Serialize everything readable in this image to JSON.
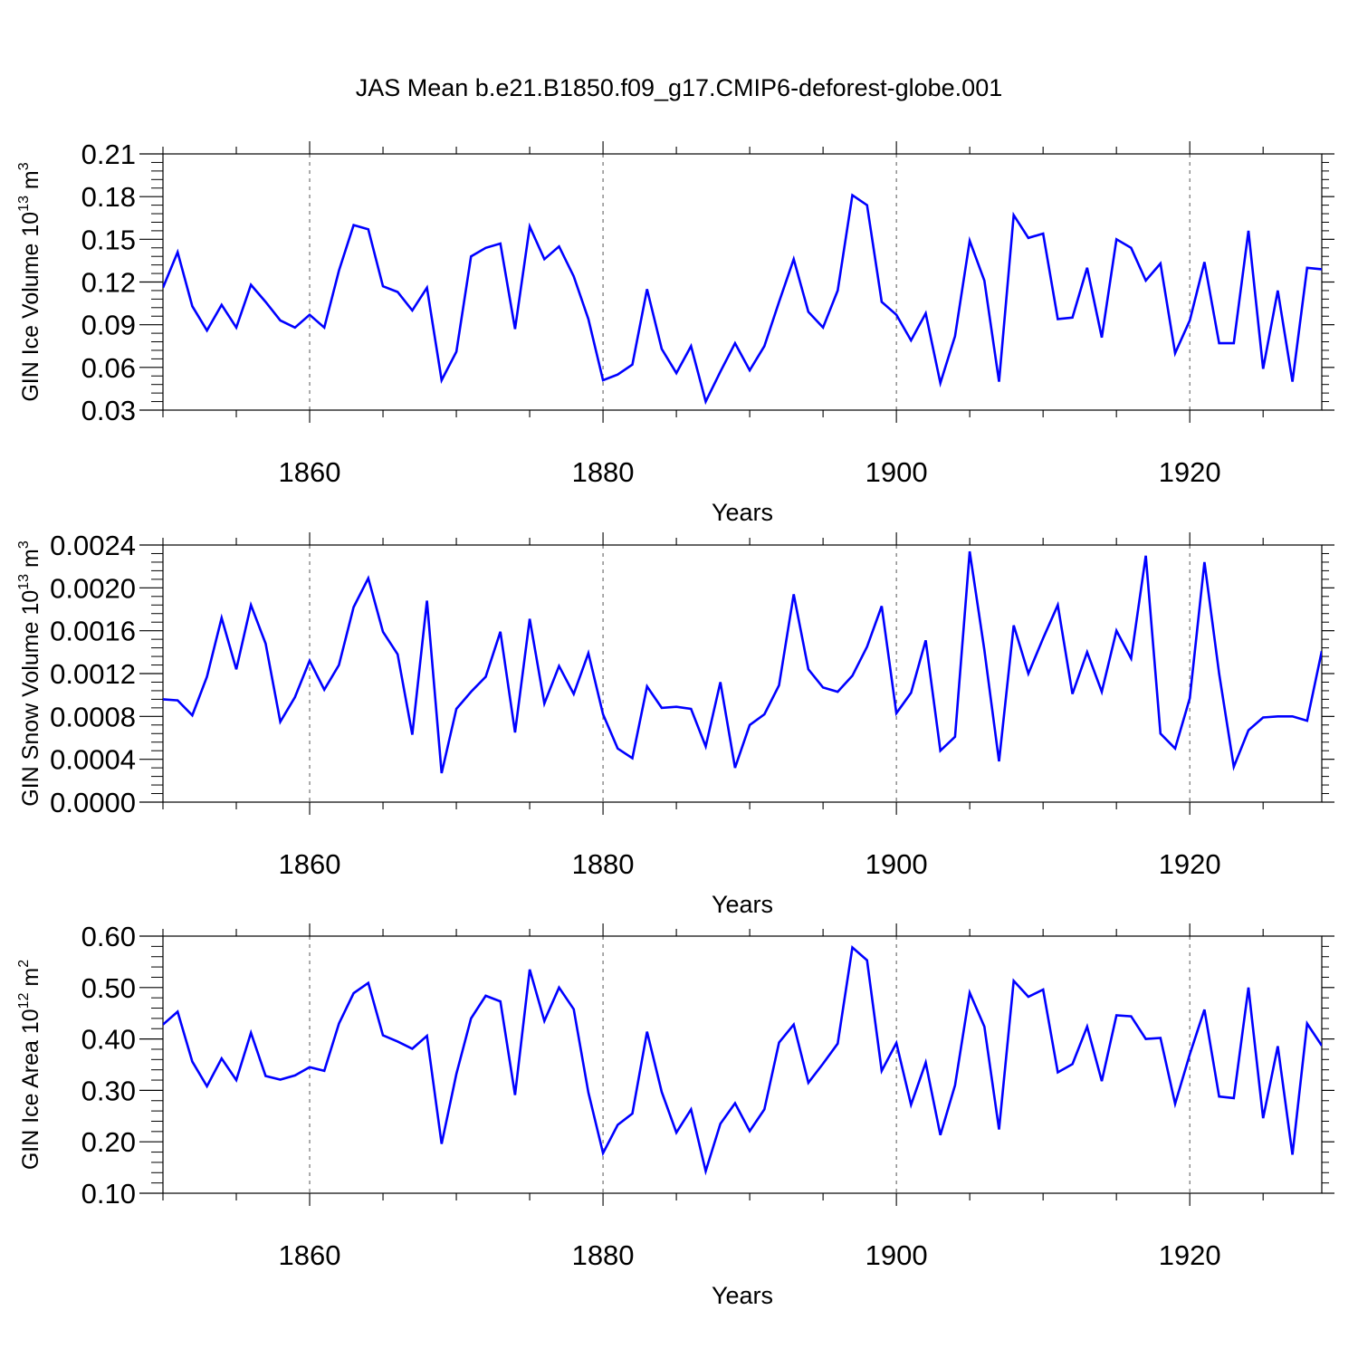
{
  "title": "JAS Mean b.e21.B1850.f09_g17.CMIP6-deforest-globe.001",
  "colors": {
    "line": "#0000ff",
    "axis": "#000000",
    "grid": "#555555",
    "background": "#ffffff"
  },
  "chart_data": [
    {
      "type": "line",
      "ylabel": "GIN Ice Volume 10",
      "ylabel_exp": "13",
      "ylabel_unit": " m",
      "ylabel_unit_exp": "3",
      "xlabel": "Years",
      "xlim": [
        1850,
        1929
      ],
      "ylim": [
        0.03,
        0.21
      ],
      "yticks": [
        "0.03",
        "0.06",
        "0.09",
        "0.12",
        "0.15",
        "0.18",
        "0.21"
      ],
      "xticks": [
        "1860",
        "1880",
        "1900",
        "1920"
      ],
      "grid": "vertical dashed at major x ticks",
      "series": [
        {
          "x_start": 1850,
          "values": [
            0.116,
            0.141,
            0.103,
            0.086,
            0.104,
            0.088,
            0.118,
            0.106,
            0.093,
            0.088,
            0.097,
            0.088,
            0.128,
            0.16,
            0.157,
            0.117,
            0.113,
            0.1,
            0.116,
            0.051,
            0.071,
            0.138,
            0.144,
            0.147,
            0.087,
            0.159,
            0.136,
            0.145,
            0.124,
            0.094,
            0.051,
            0.055,
            0.062,
            0.115,
            0.073,
            0.056,
            0.075,
            0.036,
            0.057,
            0.077,
            0.058,
            0.075,
            0.106,
            0.136,
            0.099,
            0.088,
            0.114,
            0.181,
            0.174,
            0.106,
            0.097,
            0.079,
            0.098,
            0.049,
            0.082,
            0.149,
            0.121,
            0.05,
            0.167,
            0.151,
            0.154,
            0.094,
            0.095,
            0.13,
            0.081,
            0.15,
            0.144,
            0.121,
            0.133,
            0.07,
            0.093,
            0.134,
            0.077,
            0.077,
            0.156,
            0.059,
            0.114,
            0.05,
            0.13,
            0.129
          ]
        }
      ]
    },
    {
      "type": "line",
      "ylabel": "GIN Snow Volume 10",
      "ylabel_exp": "13",
      "ylabel_unit": " m",
      "ylabel_unit_exp": "3",
      "xlabel": "Years",
      "xlim": [
        1850,
        1929
      ],
      "ylim": [
        0.0,
        0.0024
      ],
      "yticks": [
        "0.0000",
        "0.0004",
        "0.0008",
        "0.0012",
        "0.0016",
        "0.0020",
        "0.0024"
      ],
      "xticks": [
        "1860",
        "1880",
        "1900",
        "1920"
      ],
      "grid": "vertical dashed at major x ticks",
      "series": [
        {
          "x_start": 1850,
          "values": [
            0.00096,
            0.00095,
            0.00081,
            0.00117,
            0.00172,
            0.00124,
            0.00184,
            0.00148,
            0.00075,
            0.00098,
            0.00132,
            0.00105,
            0.00128,
            0.00182,
            0.00209,
            0.00159,
            0.00138,
            0.00063,
            0.00188,
            0.00027,
            0.00087,
            0.00103,
            0.00117,
            0.00159,
            0.00065,
            0.00171,
            0.00092,
            0.00127,
            0.00101,
            0.00139,
            0.00082,
            0.0005,
            0.00041,
            0.00108,
            0.00088,
            0.00089,
            0.00087,
            0.00052,
            0.00112,
            0.00032,
            0.00072,
            0.00082,
            0.00109,
            0.00194,
            0.00124,
            0.00107,
            0.00103,
            0.00118,
            0.00145,
            0.00183,
            0.00083,
            0.00102,
            0.00151,
            0.00048,
            0.00061,
            0.00234,
            0.00142,
            0.00038,
            0.00165,
            0.0012,
            0.00153,
            0.00184,
            0.00101,
            0.0014,
            0.00103,
            0.0016,
            0.00134,
            0.0023,
            0.00064,
            0.0005,
            0.00097,
            0.00224,
            0.0012,
            0.00033,
            0.00067,
            0.00079,
            0.0008,
            0.0008,
            0.00076,
            0.00141
          ]
        }
      ]
    },
    {
      "type": "line",
      "ylabel": "GIN Ice Area 10",
      "ylabel_exp": "12",
      "ylabel_unit": " m",
      "ylabel_unit_exp": "2",
      "xlabel": "Years",
      "xlim": [
        1850,
        1929
      ],
      "ylim": [
        0.1,
        0.6
      ],
      "yticks": [
        "0.10",
        "0.20",
        "0.30",
        "0.40",
        "0.50",
        "0.60"
      ],
      "xticks": [
        "1860",
        "1880",
        "1900",
        "1920"
      ],
      "grid": "vertical dashed at major x ticks",
      "series": [
        {
          "x_start": 1850,
          "values": [
            0.428,
            0.453,
            0.356,
            0.308,
            0.362,
            0.32,
            0.412,
            0.328,
            0.321,
            0.329,
            0.345,
            0.338,
            0.43,
            0.489,
            0.509,
            0.407,
            0.395,
            0.381,
            0.406,
            0.196,
            0.332,
            0.44,
            0.484,
            0.473,
            0.291,
            0.535,
            0.435,
            0.5,
            0.458,
            0.296,
            0.178,
            0.233,
            0.255,
            0.414,
            0.297,
            0.218,
            0.263,
            0.143,
            0.235,
            0.275,
            0.221,
            0.263,
            0.393,
            0.428,
            0.315,
            0.352,
            0.391,
            0.578,
            0.553,
            0.338,
            0.392,
            0.272,
            0.354,
            0.213,
            0.31,
            0.49,
            0.424,
            0.224,
            0.513,
            0.482,
            0.496,
            0.335,
            0.351,
            0.424,
            0.318,
            0.446,
            0.444,
            0.4,
            0.402,
            0.274,
            0.37,
            0.457,
            0.288,
            0.285,
            0.5,
            0.246,
            0.386,
            0.175,
            0.43,
            0.387
          ]
        }
      ]
    }
  ]
}
